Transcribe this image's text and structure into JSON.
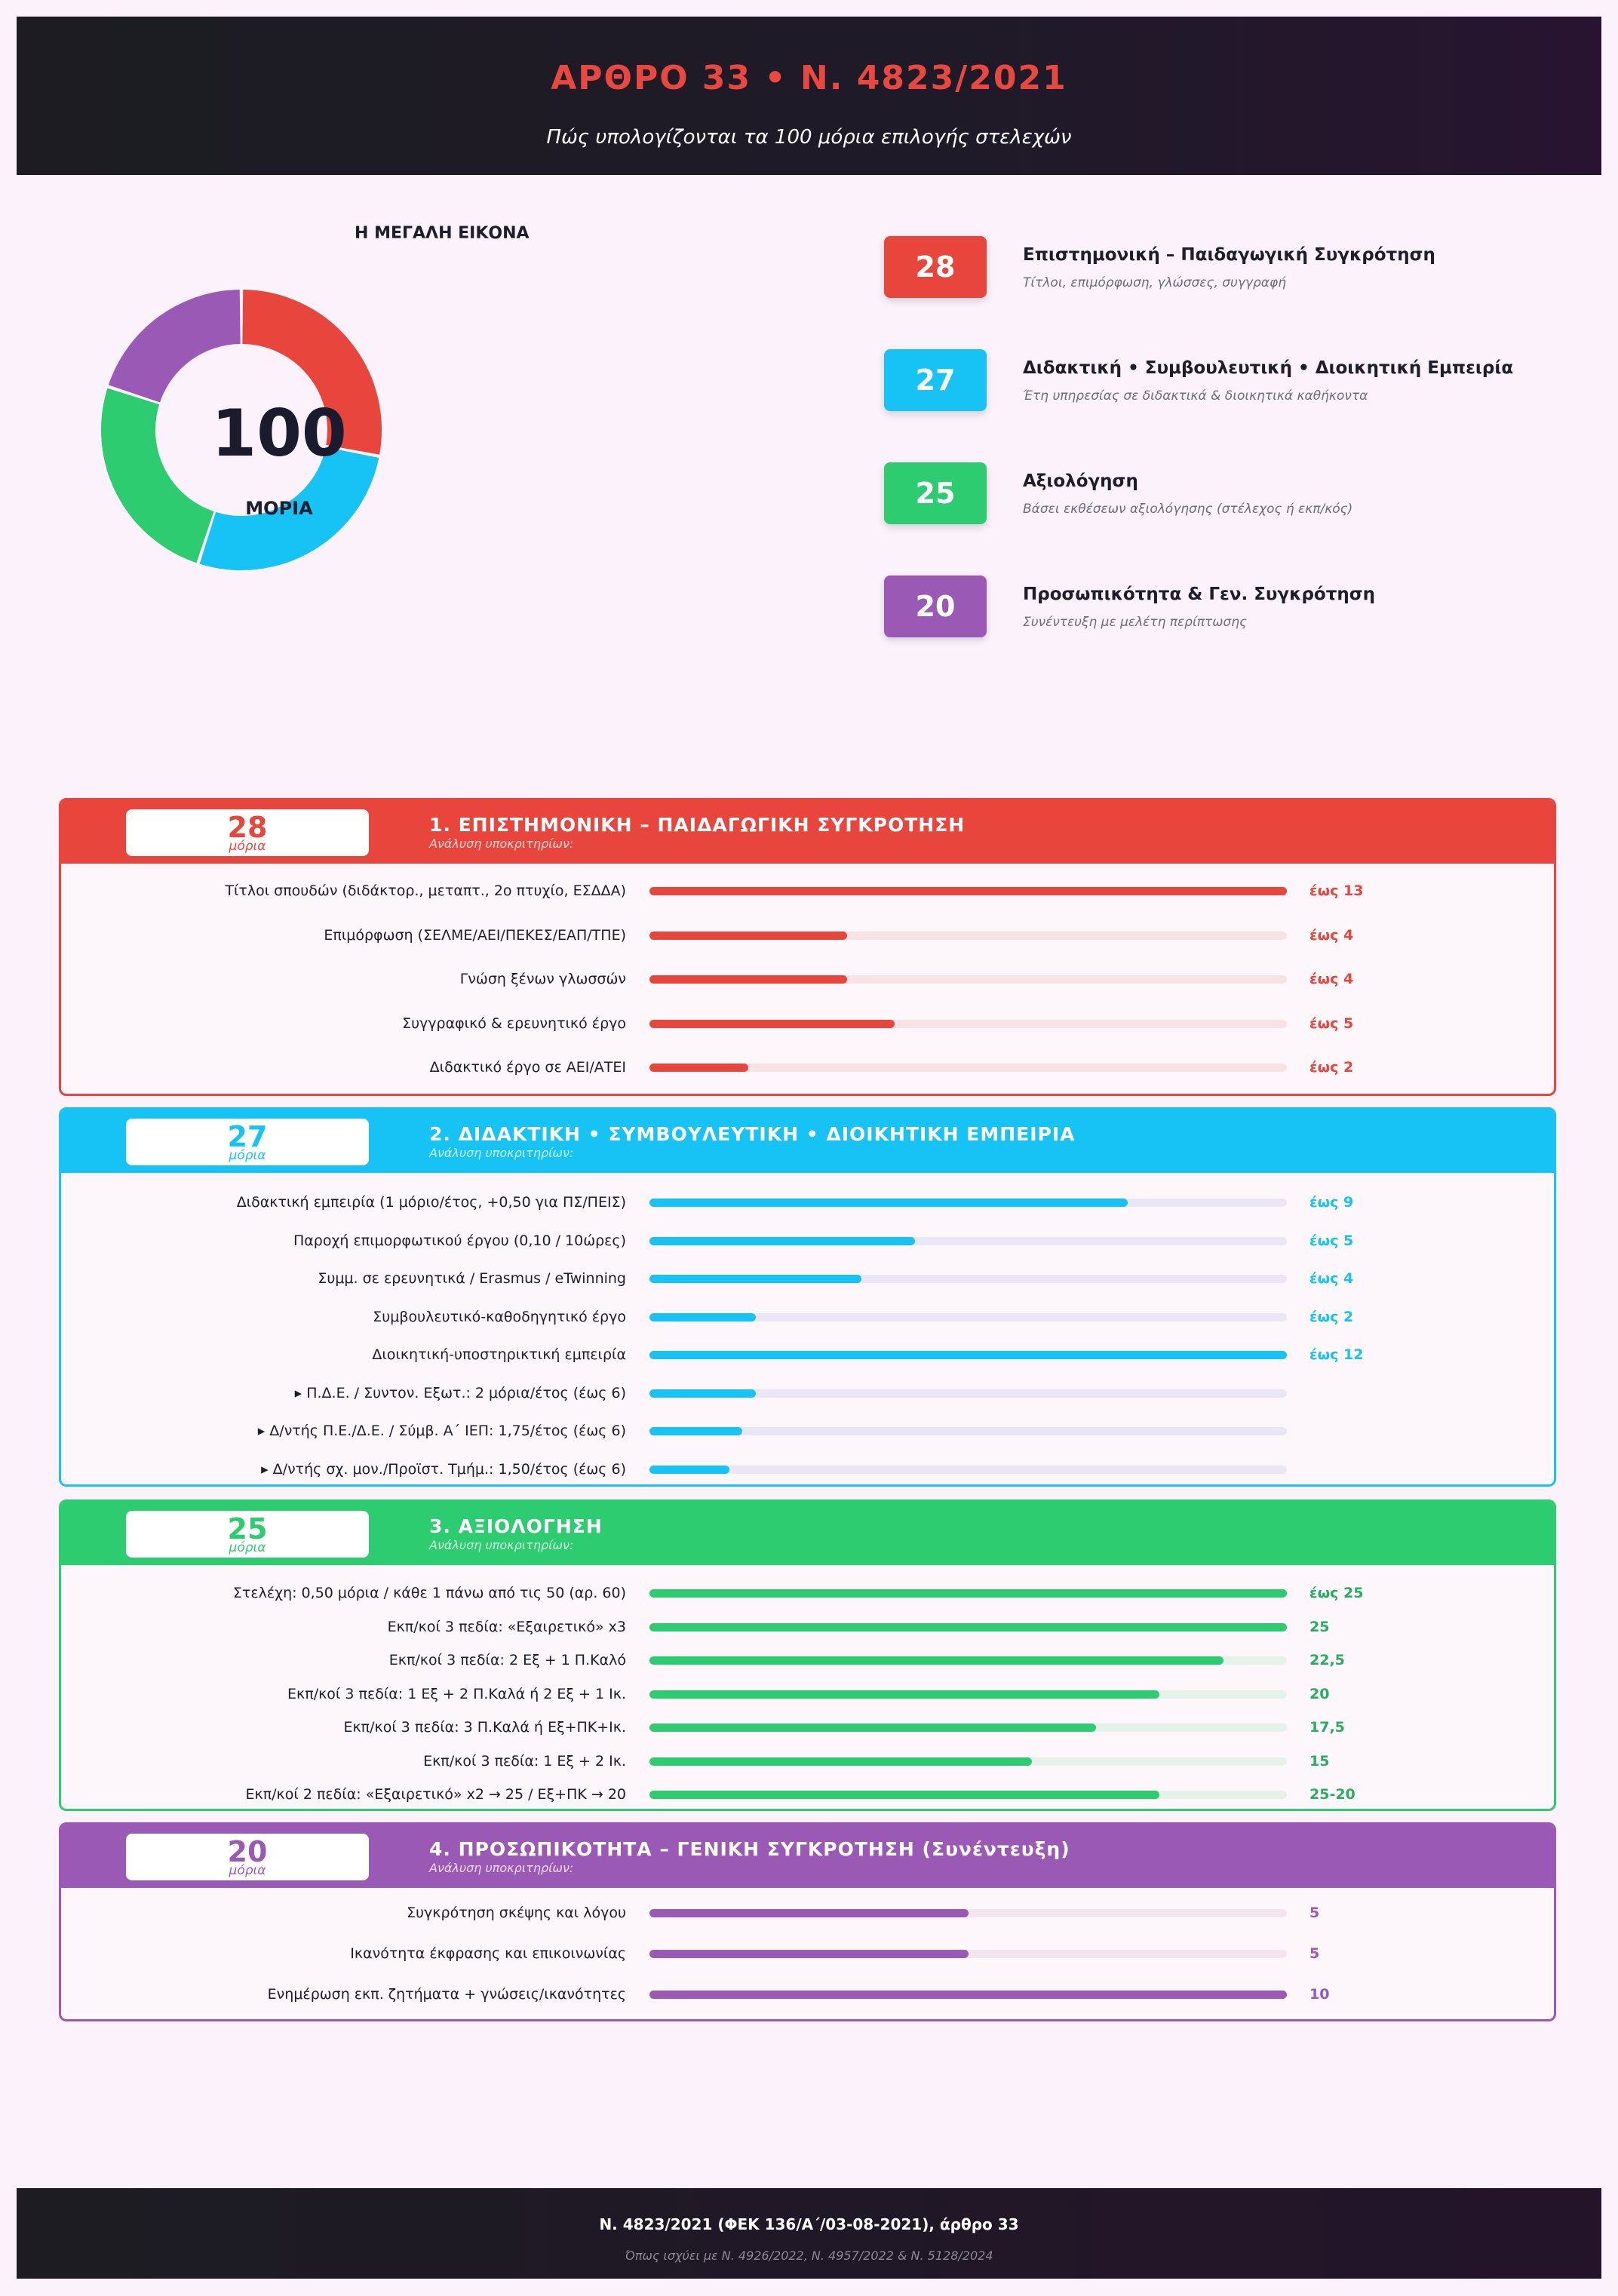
{
  "header": {
    "title": "ΑΡΘΡΟ 33  •  Ν. 4823/2021",
    "subtitle": "Πώς υπολογίζονται τα 100 μόρια επιλογής στελεχών"
  },
  "overview": {
    "heading": "Η ΜΕΓΑΛΗ ΕΙΚΟΝΑ",
    "total": "100",
    "total_label": "ΜΟΡΙΑ",
    "slices": [
      {
        "value": 28,
        "color": "#e8453c"
      },
      {
        "value": 27,
        "color": "#17c2f5"
      },
      {
        "value": 25,
        "color": "#2ecc71"
      },
      {
        "value": 20,
        "color": "#9b59b6"
      }
    ]
  },
  "legend": [
    {
      "points": "28",
      "color": "#e8453c",
      "title": "Επιστημονική – Παιδαγωγική Συγκρότηση",
      "subtitle": "Τίτλοι, επιμόρφωση, γλώσσες, συγγραφή"
    },
    {
      "points": "27",
      "color": "#17c2f5",
      "title": "Διδακτική • Συμβουλευτική • Διοικητική Εμπειρία",
      "subtitle": "Έτη υπηρεσίας σε διδακτικά & διοικητικά καθήκοντα"
    },
    {
      "points": "25",
      "color": "#2ecc71",
      "title": "Αξιολόγηση",
      "subtitle": "Βάσει εκθέσεων αξιολόγησης (στέλεχος ή εκπ/κός)"
    },
    {
      "points": "20",
      "color": "#9b59b6",
      "title": "Προσωπικότητα & Γεν. Συγκρότηση",
      "subtitle": "Συνέντευξη με μελέτη περίπτωσης"
    }
  ],
  "sections": [
    {
      "points": "28",
      "points_label": "μόρια",
      "color": "#e8453c",
      "track": "#f7e2e6",
      "value_color": "#e8453c",
      "title": "1.  ΕΠΙΣΤΗΜΟΝΙΚΗ – ΠΑΙΔΑΓΩΓΙΚΗ ΣΥΓΚΡΟΤΗΣΗ",
      "subtitle": "Ανάλυση υποκριτηρίων:",
      "rows": [
        {
          "label": "Τίτλοι σπουδών (διδάκτορ., μεταπτ., 2ο πτυχίο, ΕΣΔΔΑ)",
          "value": "έως 13",
          "fill": 1.0
        },
        {
          "label": "Επιμόρφωση (ΣΕΛΜΕ/ΑΕΙ/ΠΕΚΕΣ/ΕΑΠ/ΤΠΕ)",
          "value": "έως 4",
          "fill": 0.31
        },
        {
          "label": "Γνώση ξένων γλωσσών",
          "value": "έως 4",
          "fill": 0.31
        },
        {
          "label": "Συγγραφικό & ερευνητικό έργο",
          "value": "έως 5",
          "fill": 0.385
        },
        {
          "label": "Διδακτικό έργο σε ΑΕΙ/ΑΤΕΙ",
          "value": "έως 2",
          "fill": 0.155
        }
      ]
    },
    {
      "points": "27",
      "points_label": "μόρια",
      "color": "#17c2f5",
      "track": "#ebe6f6",
      "value_color": "#17c2f5",
      "title": "2.  ΔΙΔΑΚΤΙΚΗ • ΣΥΜΒΟΥΛΕΥΤΙΚΗ • ΔΙΟΙΚΗΤΙΚΗ ΕΜΠΕΙΡΙΑ",
      "subtitle": "Ανάλυση υποκριτηρίων:",
      "rows": [
        {
          "label": "Διδακτική εμπειρία (1 μόριο/έτος, +0,50 για ΠΣ/ΠΕΙΣ)",
          "value": "έως 9",
          "fill": 0.75
        },
        {
          "label": "Παροχή επιμορφωτικού έργου (0,10 / 10ώρες)",
          "value": "έως 5",
          "fill": 0.417
        },
        {
          "label": "Συμμ. σε ερευνητικά / Erasmus / eTwinning",
          "value": "έως 4",
          "fill": 0.333
        },
        {
          "label": "Συμβουλευτικό-καθοδηγητικό έργο",
          "value": "έως 2",
          "fill": 0.167
        },
        {
          "label": "Διοικητική-υποστηρικτική εμπειρία",
          "value": "έως 12",
          "fill": 1.0
        },
        {
          "label": "▸ Π.Δ.Ε. / Συντον. Εξωτ.: 2 μόρια/έτος (έως 6)",
          "value": "",
          "fill": 0.167
        },
        {
          "label": "▸ Δ/ντής Π.Ε./Δ.Ε. / Σύμβ. Α΄ ΙΕΠ: 1,75/έτος (έως 6)",
          "value": "",
          "fill": 0.146
        },
        {
          "label": "▸ Δ/ντής σχ. μον./Προϊστ. Τμήμ.: 1,50/έτος (έως 6)",
          "value": "",
          "fill": 0.125
        }
      ]
    },
    {
      "points": "25",
      "points_label": "μόρια",
      "color": "#2ecc71",
      "track": "#e5f2ea",
      "value_color": "#27ae60",
      "title": "3.  ΑΞΙΟΛΟΓΗΣΗ",
      "subtitle": "Ανάλυση υποκριτηρίων:",
      "rows": [
        {
          "label": "Στελέχη: 0,50 μόρια / κάθε 1 πάνω από τις 50 (αρ. 60)",
          "value": "έως 25",
          "fill": 1.0
        },
        {
          "label": "Εκπ/κοί 3 πεδία: «Εξαιρετικό» x3",
          "value": "25",
          "fill": 1.0
        },
        {
          "label": "Εκπ/κοί 3 πεδία: 2 Εξ + 1 Π.Καλό",
          "value": "22,5",
          "fill": 0.9
        },
        {
          "label": "Εκπ/κοί 3 πεδία: 1 Εξ + 2 Π.Καλά  ή  2 Εξ + 1 Ικ.",
          "value": "20",
          "fill": 0.8
        },
        {
          "label": "Εκπ/κοί 3 πεδία: 3 Π.Καλά  ή  Εξ+ΠΚ+Ικ.",
          "value": "17,5",
          "fill": 0.7
        },
        {
          "label": "Εκπ/κοί 3 πεδία: 1 Εξ + 2 Ικ.",
          "value": "15",
          "fill": 0.6
        },
        {
          "label": "Εκπ/κοί 2 πεδία: «Εξαιρετικό» x2 → 25  /  Εξ+ΠΚ → 20",
          "value": "25-20",
          "fill": 0.8
        }
      ]
    },
    {
      "points": "20",
      "points_label": "μόρια",
      "color": "#9b59b6",
      "track": "#f4e4ef",
      "value_color": "#9b59b6",
      "title": "4.  ΠΡΟΣΩΠΙΚΟΤΗΤΑ – ΓΕΝΙΚΗ ΣΥΓΚΡΟΤΗΣΗ (Συνέντευξη)",
      "subtitle": "Ανάλυση υποκριτηρίων:",
      "rows": [
        {
          "label": "Συγκρότηση σκέψης και λόγου",
          "value": "5",
          "fill": 0.5
        },
        {
          "label": "Ικανότητα έκφρασης και επικοινωνίας",
          "value": "5",
          "fill": 0.5
        },
        {
          "label": "Ενημέρωση εκπ. ζητήματα + γνώσεις/ικανότητες",
          "value": "10",
          "fill": 1.0
        }
      ]
    }
  ],
  "footer": {
    "main": "Ν. 4823/2021 (ΦΕΚ 136/Α΄/03-08-2021), άρθρο 33",
    "sub": "Όπως ισχύει με Ν. 4926/2022, Ν. 4957/2022 & Ν. 5128/2024"
  }
}
